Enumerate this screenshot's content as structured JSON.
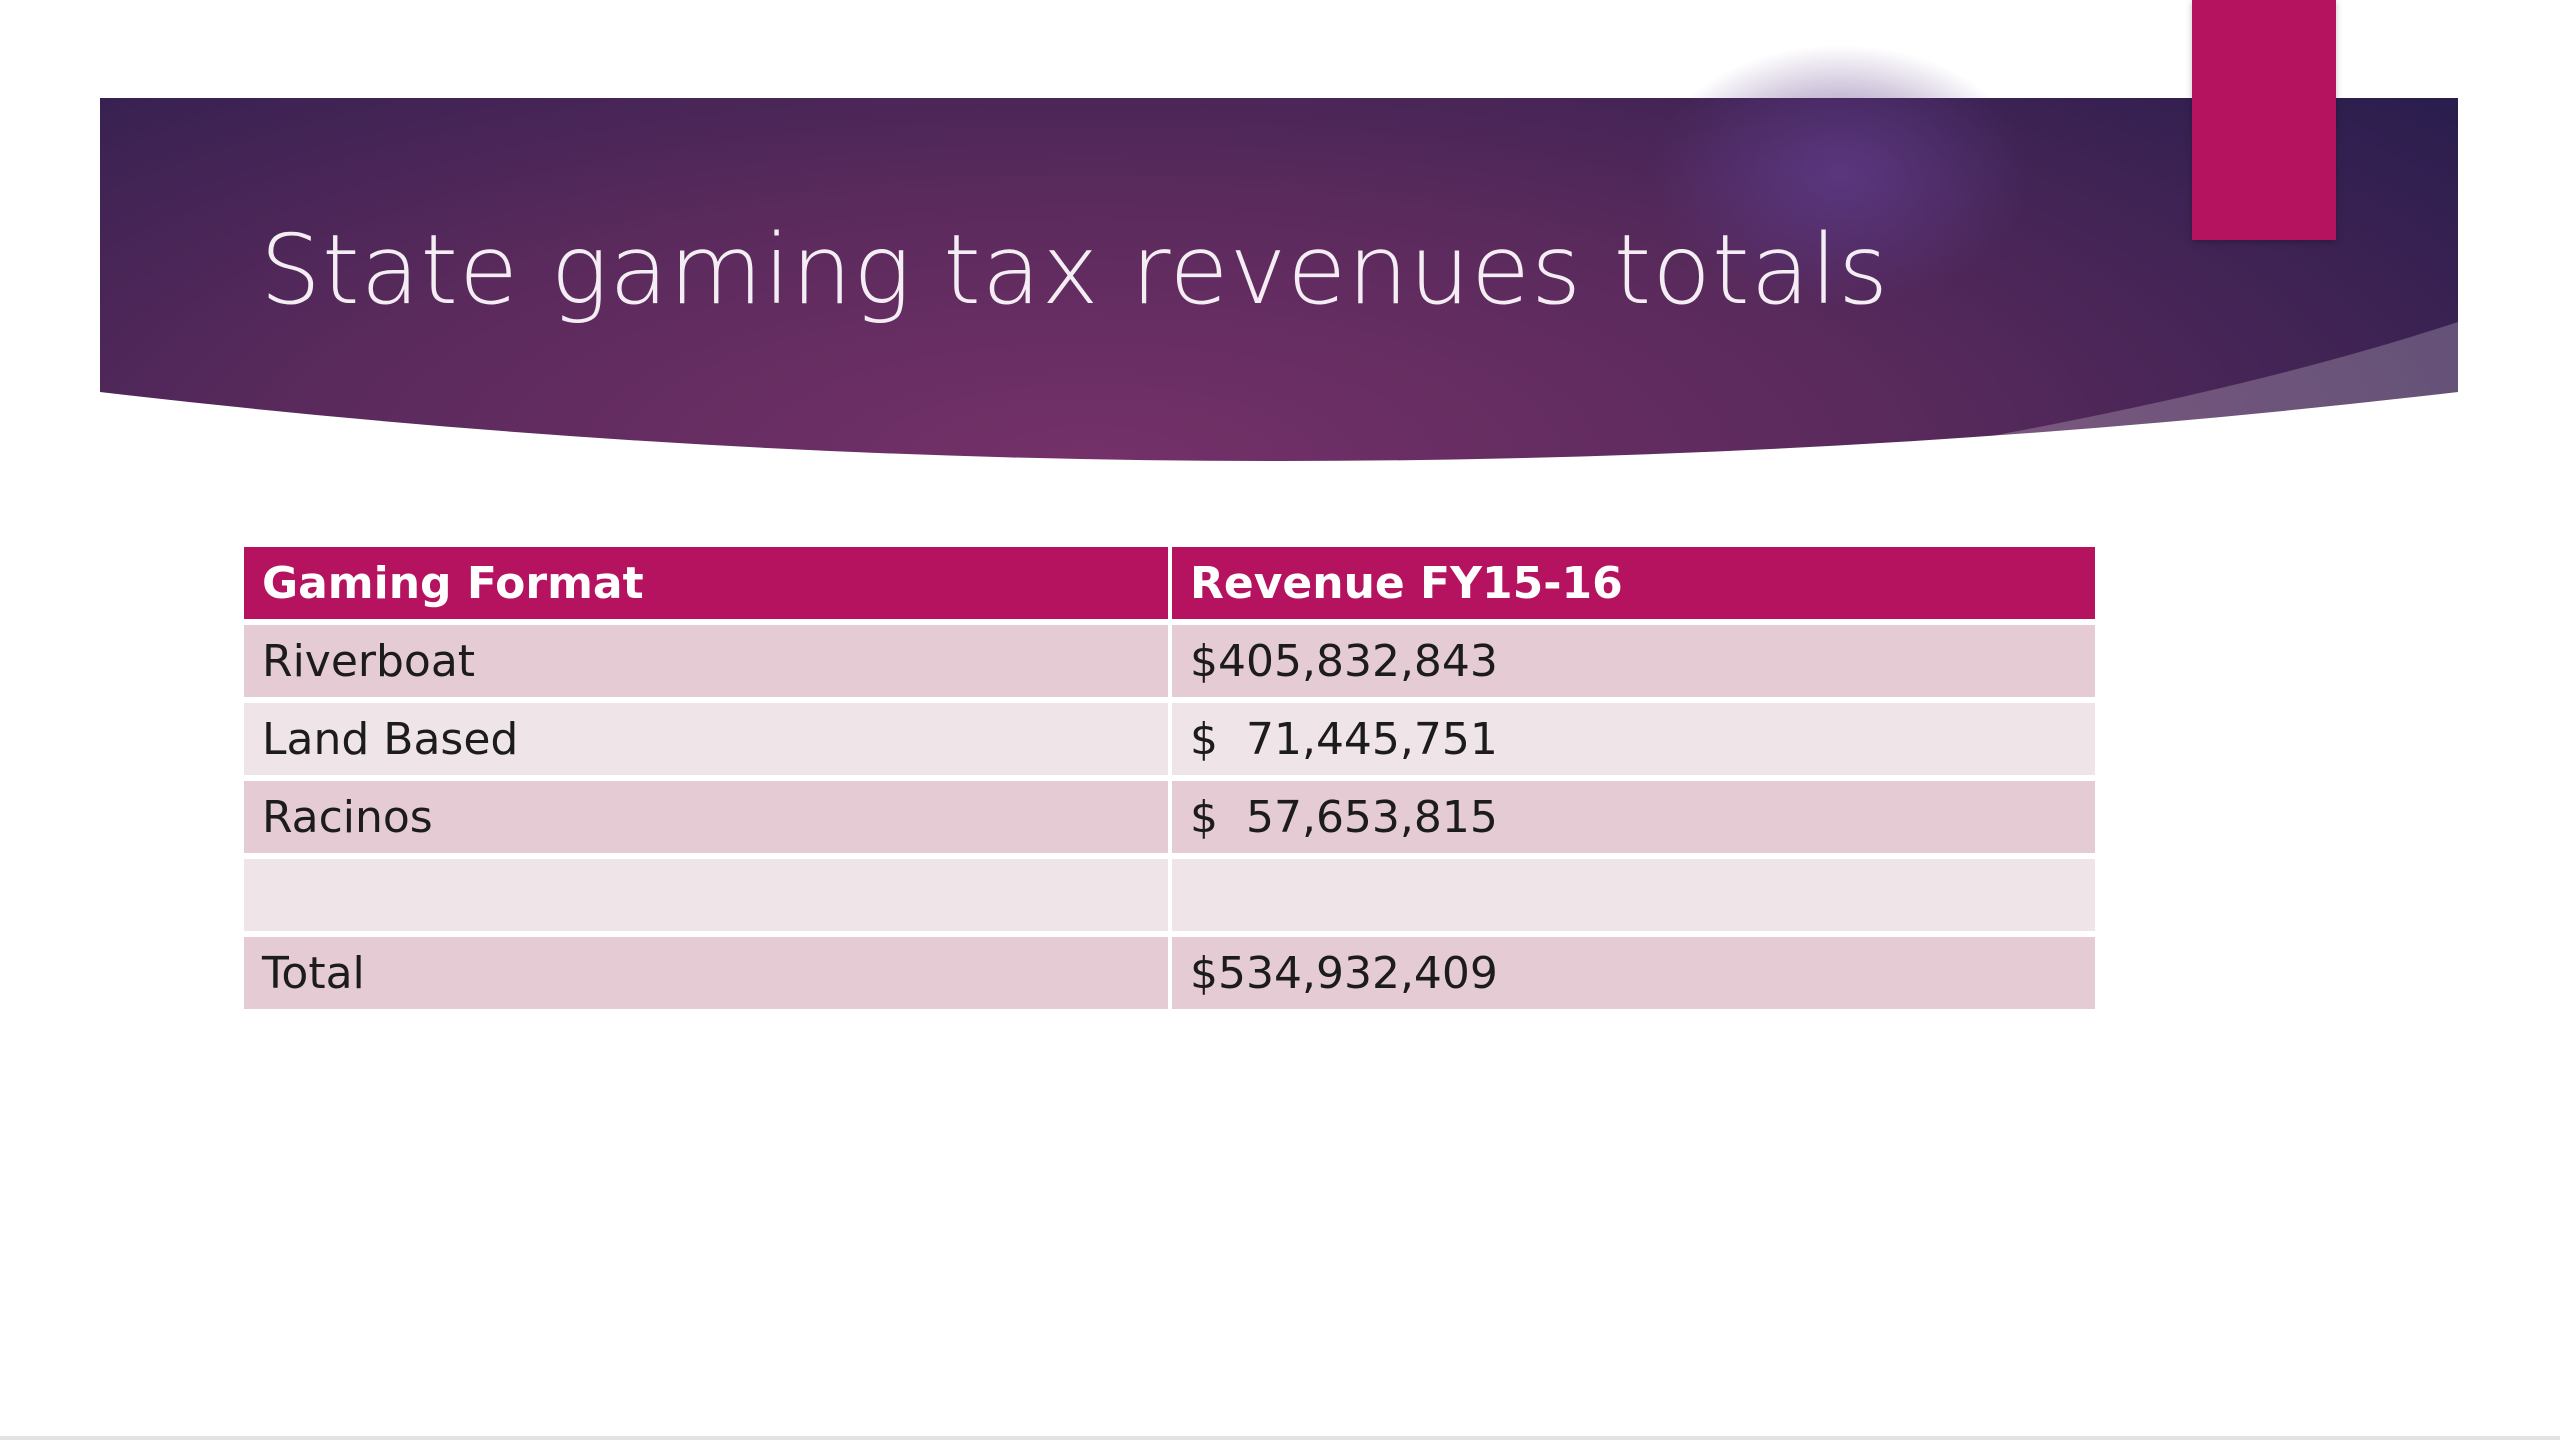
{
  "slide": {
    "title": "State gaming tax revenues totals"
  },
  "colors": {
    "banner_dark": "#271d4d",
    "banner_mid": "#6a2d66",
    "accent": "#b5135f",
    "row_dark": "#e5cbd3",
    "row_light": "#efe5e9"
  },
  "table": {
    "headers": [
      "Gaming Format",
      "Revenue FY15-16"
    ],
    "rows": [
      [
        "Riverboat",
        "$405,832,843"
      ],
      [
        "Land Based",
        "$  71,445,751"
      ],
      [
        "Racinos",
        "$  57,653,815"
      ],
      [
        "",
        ""
      ],
      [
        "Total",
        "$534,932,409"
      ]
    ]
  }
}
